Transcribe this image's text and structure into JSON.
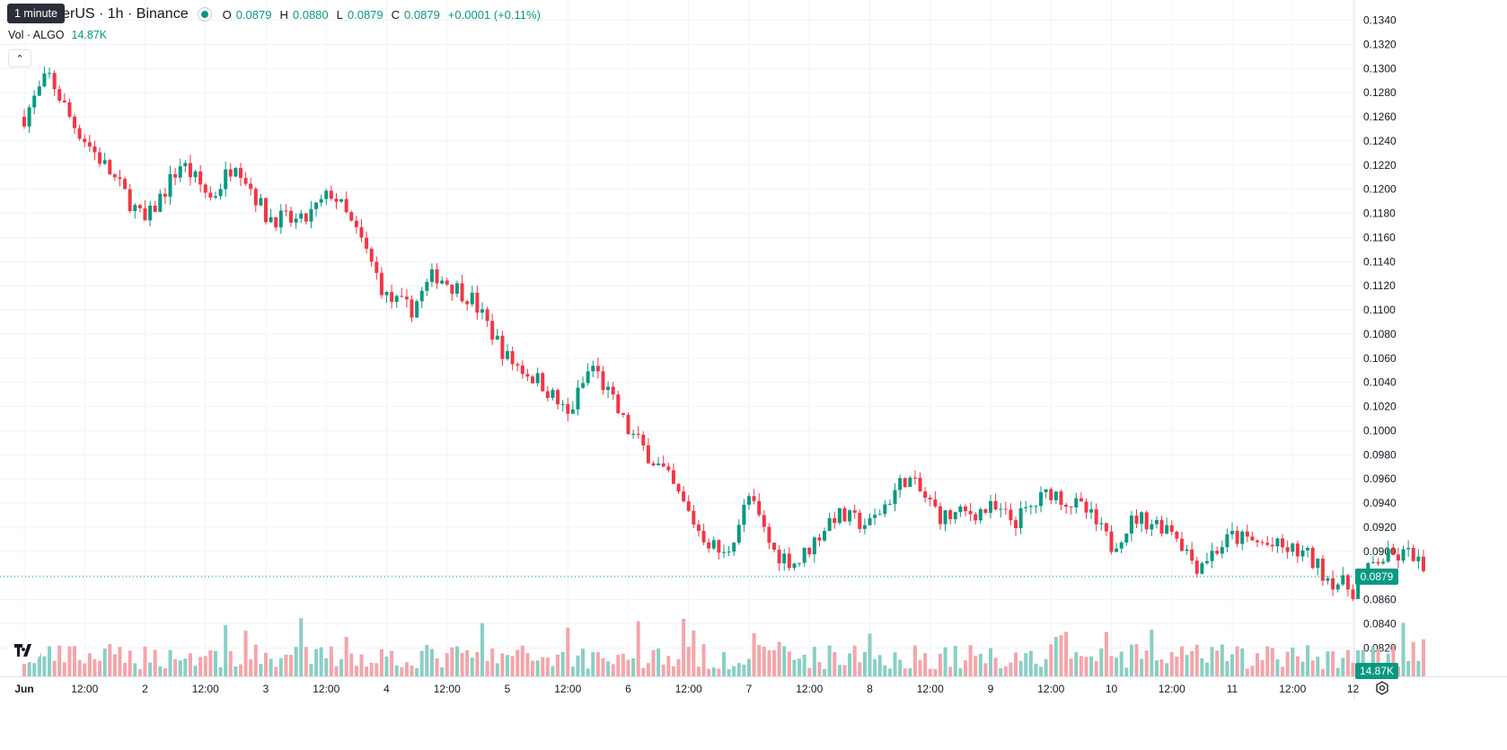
{
  "legend": {
    "title": "nd / TetherUS · 1h · Binance",
    "open_label": "O",
    "open": "0.0879",
    "high_label": "H",
    "high": "0.0880",
    "low_label": "L",
    "low": "0.0879",
    "close_label": "C",
    "close": "0.0879",
    "change": "+0.0001 (+0.11%)"
  },
  "tooltip": "1 minute",
  "volume": {
    "label": "Vol · ALGO",
    "value": "14.87K"
  },
  "collapse_icon": "chevron-up-icon",
  "last_price_tag": "0.0879",
  "last_volume_tag": "14.87K",
  "colors": {
    "up": "#089981",
    "down": "#f23645",
    "up_vol": "#89cfc4",
    "down_vol": "#f5a5aa",
    "grid": "#f0f3fa"
  },
  "chart_data": {
    "type": "candlestick",
    "interval": "1h",
    "ylim": [
      0.0818,
      0.1346
    ],
    "price_ticks": [
      "0.1340",
      "0.1320",
      "0.1300",
      "0.1280",
      "0.1260",
      "0.1240",
      "0.1220",
      "0.1200",
      "0.1180",
      "0.1160",
      "0.1140",
      "0.1120",
      "0.1100",
      "0.1080",
      "0.1060",
      "0.1040",
      "0.1020",
      "0.1000",
      "0.0980",
      "0.0960",
      "0.0940",
      "0.0920",
      "0.0900",
      "0.0880",
      "0.0860",
      "0.0840",
      "0.0820"
    ],
    "time_ticks": [
      "Jun",
      "12:00",
      "2",
      "12:00",
      "3",
      "12:00",
      "4",
      "12:00",
      "5",
      "12:00",
      "6",
      "12:00",
      "7",
      "12:00",
      "8",
      "12:00",
      "9",
      "12:00",
      "10",
      "12:00",
      "11",
      "12:00",
      "12"
    ],
    "close_path": [
      {
        "t": 0.0,
        "p": 0.126
      },
      {
        "t": 0.2,
        "p": 0.1295
      },
      {
        "t": 0.4,
        "p": 0.1255
      },
      {
        "t": 0.7,
        "p": 0.1215
      },
      {
        "t": 1.0,
        "p": 0.1172
      },
      {
        "t": 1.3,
        "p": 0.1222
      },
      {
        "t": 1.55,
        "p": 0.1192
      },
      {
        "t": 1.75,
        "p": 0.1225
      },
      {
        "t": 2.0,
        "p": 0.1178
      },
      {
        "t": 2.3,
        "p": 0.1172
      },
      {
        "t": 2.55,
        "p": 0.1198
      },
      {
        "t": 2.8,
        "p": 0.1155
      },
      {
        "t": 3.0,
        "p": 0.111
      },
      {
        "t": 3.2,
        "p": 0.11
      },
      {
        "t": 3.4,
        "p": 0.113
      },
      {
        "t": 3.7,
        "p": 0.111
      },
      {
        "t": 4.0,
        "p": 0.106
      },
      {
        "t": 4.3,
        "p": 0.1038
      },
      {
        "t": 4.5,
        "p": 0.1012
      },
      {
        "t": 4.7,
        "p": 0.1055
      },
      {
        "t": 5.0,
        "p": 0.1
      },
      {
        "t": 5.3,
        "p": 0.0965
      },
      {
        "t": 5.6,
        "p": 0.0915
      },
      {
        "t": 5.8,
        "p": 0.0895
      },
      {
        "t": 6.0,
        "p": 0.0945
      },
      {
        "t": 6.2,
        "p": 0.09
      },
      {
        "t": 6.4,
        "p": 0.089
      },
      {
        "t": 6.7,
        "p": 0.093
      },
      {
        "t": 7.0,
        "p": 0.0922
      },
      {
        "t": 7.3,
        "p": 0.0962
      },
      {
        "t": 7.6,
        "p": 0.0928
      },
      {
        "t": 8.0,
        "p": 0.0935
      },
      {
        "t": 8.2,
        "p": 0.0925
      },
      {
        "t": 8.5,
        "p": 0.095
      },
      {
        "t": 8.8,
        "p": 0.0932
      },
      {
        "t": 9.0,
        "p": 0.0905
      },
      {
        "t": 9.2,
        "p": 0.0928
      },
      {
        "t": 9.5,
        "p": 0.092
      },
      {
        "t": 9.7,
        "p": 0.0888
      },
      {
        "t": 10.0,
        "p": 0.0912
      },
      {
        "t": 10.3,
        "p": 0.0905
      },
      {
        "t": 10.6,
        "p": 0.0898
      },
      {
        "t": 10.8,
        "p": 0.0878
      },
      {
        "t": 11.0,
        "p": 0.0868
      },
      {
        "t": 11.2,
        "p": 0.0893
      },
      {
        "t": 11.5,
        "p": 0.0898
      },
      {
        "t": 11.6,
        "p": 0.0879
      }
    ]
  }
}
